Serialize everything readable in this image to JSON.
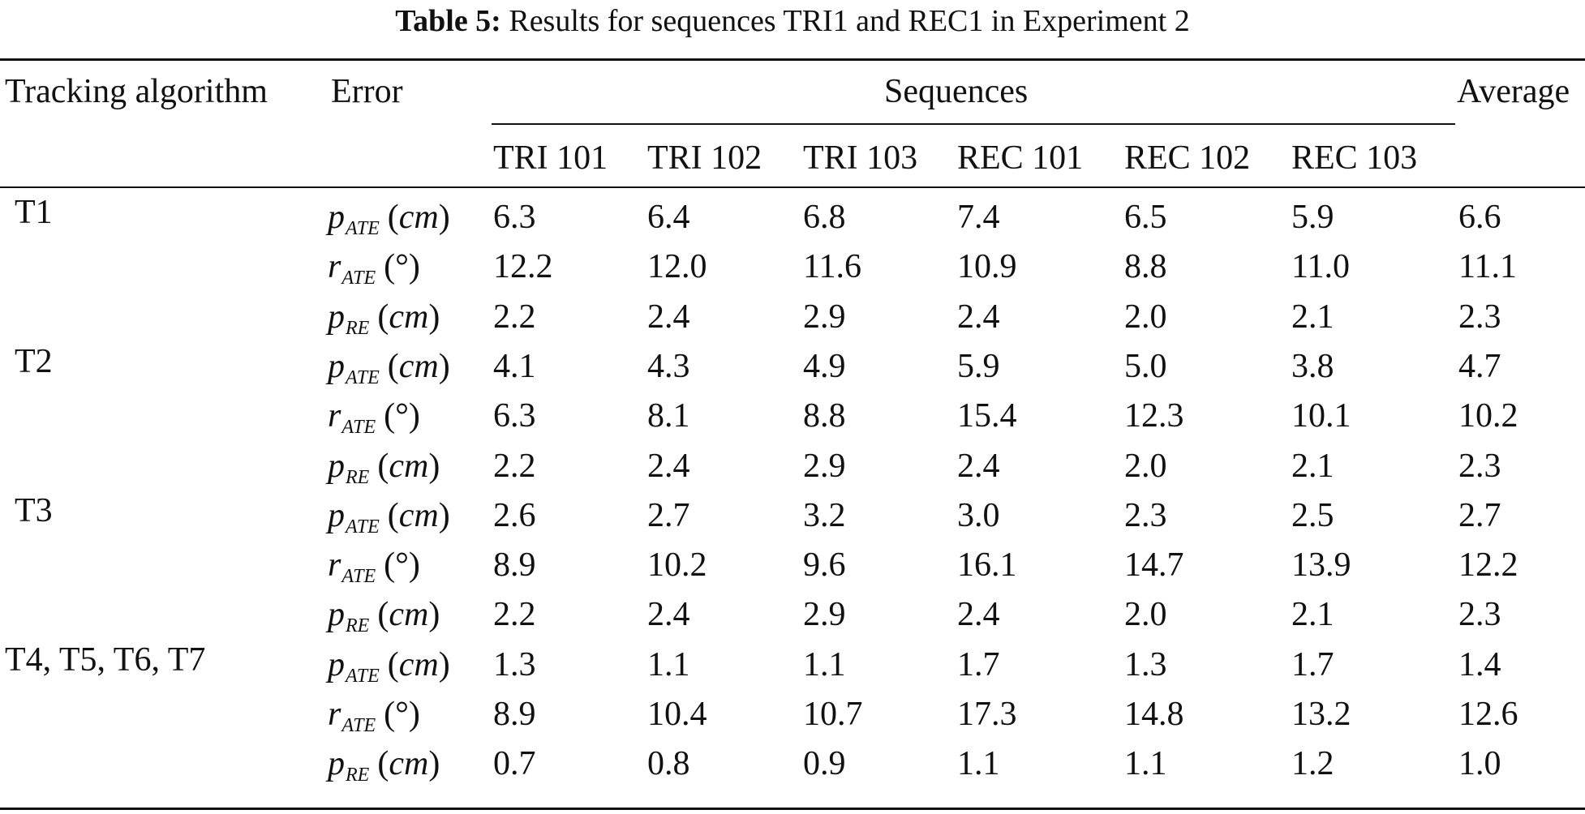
{
  "caption": {
    "label": "Table 5:",
    "text": "Results for sequences TRI1 and REC1 in Experiment 2"
  },
  "header": {
    "algorithm": "Tracking algorithm",
    "error": "Error",
    "sequences": "Sequences",
    "average": "Average",
    "sequence_names": [
      "TRI 101",
      "TRI 102",
      "TRI 103",
      "REC 101",
      "REC 102",
      "REC 103"
    ]
  },
  "groups": [
    {
      "name": "T1",
      "rows": [
        {
          "symbol": "p",
          "sub": "ATE",
          "unit": "cm",
          "values": [
            "6.3",
            "6.4",
            "6.8",
            "7.4",
            "6.5",
            "5.9"
          ],
          "average": "6.6"
        },
        {
          "symbol": "r",
          "sub": "ATE",
          "unit": "(°)",
          "values": [
            "12.2",
            "12.0",
            "11.6",
            "10.9",
            "8.8",
            "11.0"
          ],
          "average": "11.1"
        },
        {
          "symbol": "p",
          "sub": "RE",
          "unit": "cm",
          "values": [
            "2.2",
            "2.4",
            "2.9",
            "2.4",
            "2.0",
            "2.1"
          ],
          "average": "2.3"
        }
      ]
    },
    {
      "name": "T2",
      "rows": [
        {
          "symbol": "p",
          "sub": "ATE",
          "unit": "cm",
          "values": [
            "4.1",
            "4.3",
            "4.9",
            "5.9",
            "5.0",
            "3.8"
          ],
          "average": "4.7"
        },
        {
          "symbol": "r",
          "sub": "ATE",
          "unit": "(°)",
          "values": [
            "6.3",
            "8.1",
            "8.8",
            "15.4",
            "12.3",
            "10.1"
          ],
          "average": "10.2"
        },
        {
          "symbol": "p",
          "sub": "RE",
          "unit": "cm",
          "values": [
            "2.2",
            "2.4",
            "2.9",
            "2.4",
            "2.0",
            "2.1"
          ],
          "average": "2.3"
        }
      ]
    },
    {
      "name": "T3",
      "rows": [
        {
          "symbol": "p",
          "sub": "ATE",
          "unit": "cm",
          "values": [
            "2.6",
            "2.7",
            "3.2",
            "3.0",
            "2.3",
            "2.5"
          ],
          "average": "2.7"
        },
        {
          "symbol": "r",
          "sub": "ATE",
          "unit": "(°)",
          "values": [
            "8.9",
            "10.2",
            "9.6",
            "16.1",
            "14.7",
            "13.9"
          ],
          "average": "12.2"
        },
        {
          "symbol": "p",
          "sub": "RE",
          "unit": "cm",
          "values": [
            "2.2",
            "2.4",
            "2.9",
            "2.4",
            "2.0",
            "2.1"
          ],
          "average": "2.3"
        }
      ]
    },
    {
      "name": "T4, T5, T6, T7",
      "rows": [
        {
          "symbol": "p",
          "sub": "ATE",
          "unit": "cm",
          "values": [
            "1.3",
            "1.1",
            "1.1",
            "1.7",
            "1.3",
            "1.7"
          ],
          "average": "1.4"
        },
        {
          "symbol": "r",
          "sub": "ATE",
          "unit": "(°)",
          "values": [
            "8.9",
            "10.4",
            "10.7",
            "17.3",
            "14.8",
            "13.2"
          ],
          "average": "12.6"
        },
        {
          "symbol": "p",
          "sub": "RE",
          "unit": "cm",
          "values": [
            "0.7",
            "0.8",
            "0.9",
            "1.1",
            "1.1",
            "1.2"
          ],
          "average": "1.0"
        }
      ]
    }
  ]
}
